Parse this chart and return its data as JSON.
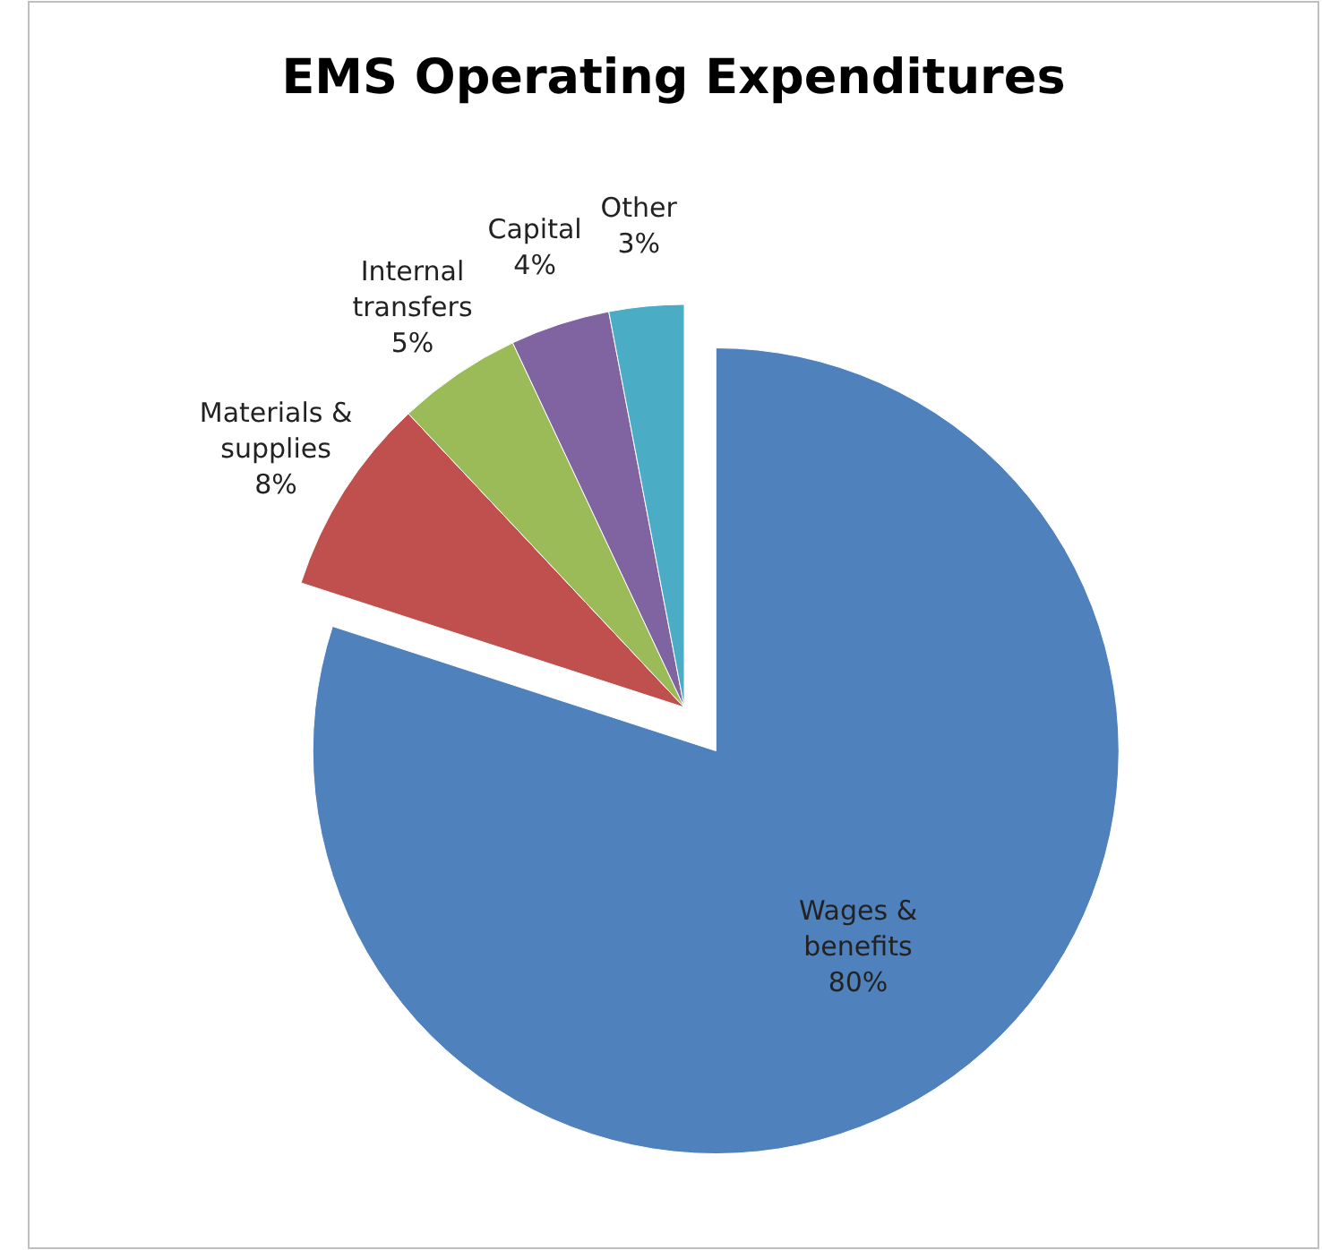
{
  "chart_data": {
    "type": "pie",
    "title": "EMS Operating Expenditures",
    "categories": [
      "Wages & benefits",
      "Materials & supplies",
      "Internal transfers",
      "Capital",
      "Other"
    ],
    "values": [
      80,
      8,
      5,
      4,
      3
    ],
    "colors": [
      "#4f81bd",
      "#c0504d",
      "#9bbb59",
      "#8064a2",
      "#4bacc6"
    ],
    "value_labels": [
      "80%",
      "8%",
      "5%",
      "4%",
      "3%"
    ]
  }
}
